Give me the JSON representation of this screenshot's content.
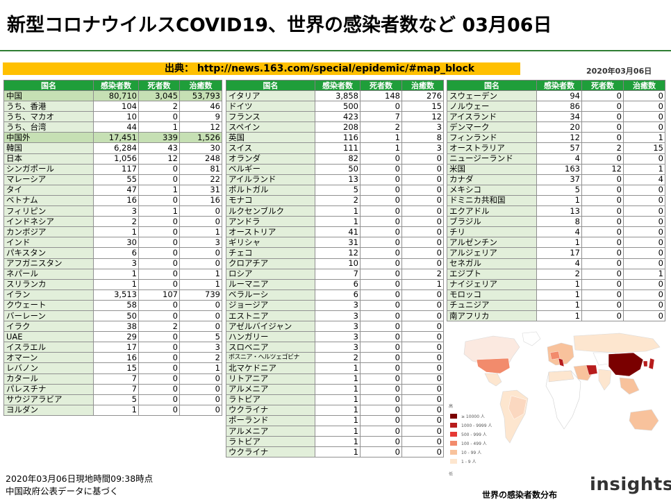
{
  "title": "新型コロナウイルスCOVID19、世界の感染者数など 03月06日",
  "source": "出典： http://news.163.com/special/epidemic/#map_block",
  "date_top": "2020年03月06日",
  "headers": [
    "国名",
    "感染者数",
    "死者数",
    "治癒数"
  ],
  "table1": [
    [
      "中国",
      "80,710",
      "3,045",
      "53,793",
      "hl"
    ],
    [
      "うち、香港",
      "104",
      "2",
      "46",
      ""
    ],
    [
      "うち、マカオ",
      "10",
      "0",
      "9",
      ""
    ],
    [
      "うち、台湾",
      "44",
      "1",
      "12",
      ""
    ],
    [
      "中国外",
      "17,451",
      "339",
      "1,526",
      "hl"
    ],
    [
      "韓国",
      "6,284",
      "43",
      "30",
      ""
    ],
    [
      "日本",
      "1,056",
      "12",
      "248",
      ""
    ],
    [
      "シンガポール",
      "117",
      "0",
      "81",
      ""
    ],
    [
      "マレーシア",
      "55",
      "0",
      "22",
      ""
    ],
    [
      "タイ",
      "47",
      "1",
      "31",
      ""
    ],
    [
      "ベトナム",
      "16",
      "0",
      "16",
      ""
    ],
    [
      "フィリピン",
      "3",
      "1",
      "0",
      ""
    ],
    [
      "インドネシア",
      "2",
      "0",
      "0",
      ""
    ],
    [
      "カンボジア",
      "1",
      "0",
      "1",
      ""
    ],
    [
      "インド",
      "30",
      "0",
      "3",
      ""
    ],
    [
      "パキスタン",
      "6",
      "0",
      "0",
      ""
    ],
    [
      "アフガニスタン",
      "3",
      "0",
      "0",
      ""
    ],
    [
      "ネパール",
      "1",
      "0",
      "1",
      ""
    ],
    [
      "スリランカ",
      "1",
      "0",
      "1",
      ""
    ],
    [
      "イラン",
      "3,513",
      "107",
      "739",
      ""
    ],
    [
      "クウェート",
      "58",
      "0",
      "0",
      ""
    ],
    [
      "バーレーン",
      "50",
      "0",
      "0",
      ""
    ],
    [
      "イラク",
      "38",
      "2",
      "0",
      ""
    ],
    [
      "UAE",
      "29",
      "0",
      "5",
      ""
    ],
    [
      "イスラエル",
      "17",
      "0",
      "3",
      ""
    ],
    [
      "オマーン",
      "16",
      "0",
      "2",
      ""
    ],
    [
      "レバノン",
      "15",
      "0",
      "1",
      ""
    ],
    [
      "カタール",
      "7",
      "0",
      "0",
      ""
    ],
    [
      "パレスチナ",
      "7",
      "0",
      "0",
      ""
    ],
    [
      "サウジアラビア",
      "5",
      "0",
      "0",
      ""
    ],
    [
      "ヨルダン",
      "1",
      "0",
      "0",
      ""
    ]
  ],
  "table2": [
    [
      "イタリア",
      "3,858",
      "148",
      "276",
      ""
    ],
    [
      "ドイツ",
      "500",
      "0",
      "15",
      ""
    ],
    [
      "フランス",
      "423",
      "7",
      "12",
      ""
    ],
    [
      "スペイン",
      "208",
      "2",
      "3",
      ""
    ],
    [
      "英国",
      "116",
      "1",
      "8",
      ""
    ],
    [
      "スイス",
      "111",
      "1",
      "3",
      ""
    ],
    [
      "オランダ",
      "82",
      "0",
      "0",
      ""
    ],
    [
      "ベルギー",
      "50",
      "0",
      "0",
      ""
    ],
    [
      "アイルランド",
      "13",
      "0",
      "0",
      ""
    ],
    [
      "ポルトガル",
      "5",
      "0",
      "0",
      ""
    ],
    [
      "モナコ",
      "2",
      "0",
      "0",
      ""
    ],
    [
      "ルクセンブルク",
      "1",
      "0",
      "0",
      ""
    ],
    [
      "アンドラ",
      "1",
      "0",
      "0",
      ""
    ],
    [
      "オーストリア",
      "41",
      "0",
      "0",
      ""
    ],
    [
      "ギリシャ",
      "31",
      "0",
      "0",
      ""
    ],
    [
      "チェコ",
      "12",
      "0",
      "0",
      ""
    ],
    [
      "クロアチア",
      "10",
      "0",
      "0",
      ""
    ],
    [
      "ロシア",
      "7",
      "0",
      "2",
      ""
    ],
    [
      "ルーマニア",
      "6",
      "0",
      "1",
      ""
    ],
    [
      "ベラルーシ",
      "6",
      "0",
      "0",
      ""
    ],
    [
      "ジョージア",
      "3",
      "0",
      "0",
      ""
    ],
    [
      "エストニア",
      "3",
      "0",
      "0",
      ""
    ],
    [
      "アゼルバイジャン",
      "3",
      "0",
      "0",
      ""
    ],
    [
      "ハンガリー",
      "3",
      "0",
      "0",
      ""
    ],
    [
      "スロベニア",
      "3",
      "0",
      "0",
      ""
    ],
    [
      "ボスニア・ヘルツェゴビナ",
      "2",
      "0",
      "0",
      "small"
    ],
    [
      "北マケドニア",
      "1",
      "0",
      "0",
      ""
    ],
    [
      "リトアニア",
      "1",
      "0",
      "0",
      ""
    ],
    [
      "アルメニア",
      "1",
      "0",
      "0",
      ""
    ],
    [
      "ラトビア",
      "1",
      "0",
      "0",
      ""
    ],
    [
      "ウクライナ",
      "1",
      "0",
      "0",
      ""
    ],
    [
      "ポーランド",
      "1",
      "0",
      "0",
      ""
    ],
    [
      "アルメニア",
      "1",
      "0",
      "0",
      ""
    ],
    [
      "ラトビア",
      "1",
      "0",
      "0",
      ""
    ],
    [
      "ウクライナ",
      "1",
      "0",
      "0",
      ""
    ]
  ],
  "table3": [
    [
      "スウェーデン",
      "94",
      "0",
      "0",
      ""
    ],
    [
      "ノルウェー",
      "86",
      "0",
      "0",
      ""
    ],
    [
      "アイスランド",
      "34",
      "0",
      "0",
      ""
    ],
    [
      "デンマーク",
      "20",
      "0",
      "0",
      ""
    ],
    [
      "フィンランド",
      "12",
      "0",
      "1",
      ""
    ],
    [
      "オーストラリア",
      "57",
      "2",
      "15",
      ""
    ],
    [
      "ニュージーランド",
      "4",
      "0",
      "0",
      ""
    ],
    [
      "米国",
      "163",
      "12",
      "1",
      ""
    ],
    [
      "カナダ",
      "37",
      "0",
      "4",
      ""
    ],
    [
      "メキシコ",
      "5",
      "0",
      "0",
      ""
    ],
    [
      "ドミニカ共和国",
      "1",
      "0",
      "0",
      ""
    ],
    [
      "エクアドル",
      "13",
      "0",
      "0",
      ""
    ],
    [
      "ブラジル",
      "8",
      "0",
      "0",
      ""
    ],
    [
      "チリ",
      "4",
      "0",
      "0",
      ""
    ],
    [
      "アルゼンチン",
      "1",
      "0",
      "0",
      ""
    ],
    [
      "アルジェリア",
      "17",
      "0",
      "0",
      ""
    ],
    [
      "セネガル",
      "4",
      "0",
      "0",
      ""
    ],
    [
      "エジプト",
      "2",
      "0",
      "1",
      ""
    ],
    [
      "ナイジェリア",
      "1",
      "0",
      "0",
      ""
    ],
    [
      "モロッコ",
      "1",
      "0",
      "0",
      ""
    ],
    [
      "チュニジア",
      "1",
      "0",
      "0",
      ""
    ],
    [
      "南アフリカ",
      "1",
      "0",
      "0",
      ""
    ]
  ],
  "map": {
    "legend_top": "高",
    "legend_bottom": "低",
    "legend": [
      {
        "label": "≥ 10000 人",
        "color": "#7a0000"
      },
      {
        "label": "1000 - 9999 人",
        "color": "#b71c1c"
      },
      {
        "label": "500 - 999 人",
        "color": "#e53935"
      },
      {
        "label": "100 - 499 人",
        "color": "#f28b6c"
      },
      {
        "label": "10 - 99 人",
        "color": "#f8c29c"
      },
      {
        "label": "1 - 9 人",
        "color": "#fde6cf"
      }
    ],
    "caption": "世界の感染者数分布"
  },
  "footnote1": "2020年03月06日現地時間09:38時点",
  "footnote2": "中国政府公表データに基づく",
  "logo": "insights"
}
